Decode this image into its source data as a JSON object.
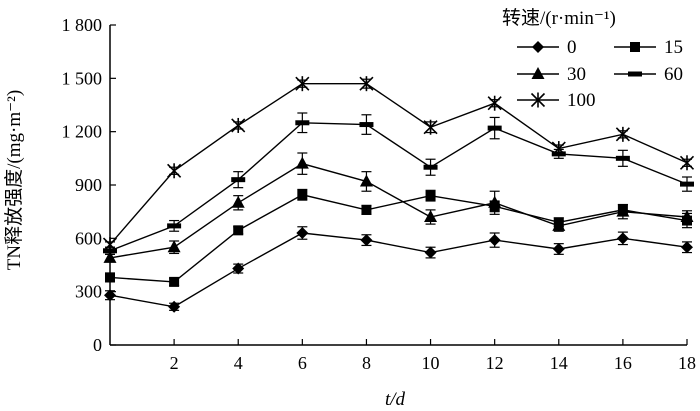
{
  "chart_data": {
    "type": "line",
    "xlabel": "t/d",
    "ylabel": "TN释放强度/(mg·m⁻²)",
    "x": [
      0,
      2,
      4,
      6,
      8,
      10,
      12,
      14,
      16,
      18
    ],
    "xticks": [
      2,
      4,
      6,
      8,
      10,
      12,
      14,
      16,
      18
    ],
    "xlim": [
      0,
      18
    ],
    "yticks": [
      0,
      300,
      600,
      900,
      1200,
      1500,
      1800
    ],
    "ytick_labels": [
      "0",
      "300",
      "600",
      "900",
      "1 200",
      "1 500",
      "1 800"
    ],
    "ylim": [
      0,
      1800
    ],
    "grid": false,
    "legend": {
      "title": "转速/(r·min⁻¹)",
      "position": "top-right",
      "columns": 2
    },
    "series": [
      {
        "name": "0",
        "marker": "diamond",
        "values": [
          280,
          215,
          430,
          630,
          590,
          520,
          590,
          540,
          600,
          550
        ],
        "errors": [
          25,
          20,
          25,
          35,
          30,
          30,
          40,
          30,
          35,
          30
        ]
      },
      {
        "name": "15",
        "marker": "square",
        "values": [
          380,
          355,
          645,
          845,
          760,
          840,
          780,
          690,
          760,
          700
        ],
        "errors": [
          25,
          20,
          20,
          30,
          25,
          30,
          30,
          25,
          30,
          40
        ]
      },
      {
        "name": "30",
        "marker": "triangle",
        "values": [
          490,
          550,
          800,
          1020,
          920,
          720,
          800,
          670,
          750,
          720
        ],
        "errors": [
          20,
          35,
          40,
          60,
          55,
          40,
          65,
          30,
          40,
          35
        ]
      },
      {
        "name": "60",
        "marker": "dash",
        "values": [
          530,
          670,
          930,
          1250,
          1240,
          1000,
          1220,
          1075,
          1050,
          905
        ],
        "errors": [
          20,
          30,
          45,
          55,
          55,
          45,
          60,
          25,
          45,
          40
        ]
      },
      {
        "name": "100",
        "marker": "asterisk",
        "values": [
          565,
          980,
          1235,
          1470,
          1470,
          1225,
          1360,
          1105,
          1185,
          1025
        ],
        "errors": [
          15,
          20,
          20,
          20,
          25,
          30,
          20,
          20,
          20,
          20
        ]
      }
    ]
  }
}
